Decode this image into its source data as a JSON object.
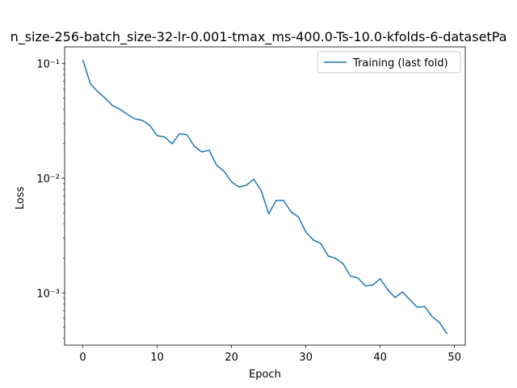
{
  "chart_data": {
    "type": "line",
    "title": "n_size-256-batch_size-32-lr-0.001-tmax_ms-400.0-Ts-10.0-kfolds-6-datasetPa",
    "xlabel": "Epoch",
    "ylabel": "Loss",
    "y_scale": "log",
    "xlim": [
      -2.45,
      51.45
    ],
    "ylim": [
      0.00035,
      0.14
    ],
    "x_ticks": [
      0,
      10,
      20,
      30,
      40,
      50
    ],
    "x_tick_labels": [
      "0",
      "10",
      "20",
      "30",
      "40",
      "50"
    ],
    "y_ticks": [
      0.001,
      0.01,
      0.1
    ],
    "y_tick_labels": [
      "10⁻³",
      "10⁻²",
      "10⁻¹"
    ],
    "grid": false,
    "legend_position": "top-right",
    "series": [
      {
        "name": "Training (last fold)",
        "color": "#1f77b4",
        "x": [
          0,
          1,
          2,
          3,
          4,
          5,
          6,
          7,
          8,
          9,
          10,
          11,
          12,
          13,
          14,
          15,
          16,
          17,
          18,
          19,
          20,
          21,
          22,
          23,
          24,
          25,
          26,
          27,
          28,
          29,
          30,
          31,
          32,
          33,
          34,
          35,
          36,
          37,
          38,
          39,
          40,
          41,
          42,
          43,
          44,
          45,
          46,
          47,
          48,
          49
        ],
        "y": [
          0.108,
          0.067,
          0.057,
          0.05,
          0.043,
          0.04,
          0.036,
          0.033,
          0.032,
          0.029,
          0.0235,
          0.023,
          0.02,
          0.0245,
          0.024,
          0.019,
          0.017,
          0.0175,
          0.013,
          0.0115,
          0.0093,
          0.0084,
          0.0087,
          0.0098,
          0.0078,
          0.0049,
          0.0064,
          0.0064,
          0.0051,
          0.0046,
          0.0034,
          0.0029,
          0.0027,
          0.0021,
          0.002,
          0.0018,
          0.0014,
          0.00135,
          0.00115,
          0.00117,
          0.00133,
          0.00107,
          0.00091,
          0.00102,
          0.00087,
          0.00075,
          0.00076,
          0.00062,
          0.00055,
          0.00044
        ]
      }
    ]
  }
}
